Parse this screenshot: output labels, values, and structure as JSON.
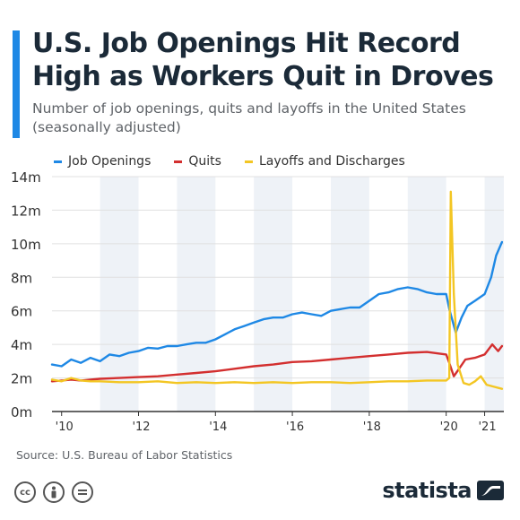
{
  "title": "U.S. Job Openings Hit Record High as Workers Quit in Droves",
  "subtitle": "Number of job openings, quits and layoffs in the United States (seasonally adjusted)",
  "source": "Source: U.S. Bureau of Labor Statistics",
  "brand": "statista",
  "license_icons": [
    "cc-icon",
    "attribution-icon",
    "no-derivatives-icon"
  ],
  "colors": {
    "accent": "#1e88e5",
    "band": "#eef2f7",
    "grid": "#e0e0e0",
    "axis": "#333333",
    "text": "#1b2a38"
  },
  "chart_data": {
    "type": "line",
    "ylim": [
      0,
      14
    ],
    "y_ticks": [
      0,
      2,
      4,
      6,
      8,
      10,
      12,
      14
    ],
    "y_tick_labels": [
      "0m",
      "2m",
      "4m",
      "6m",
      "8m",
      "10m",
      "12m",
      "14m"
    ],
    "x_ticks": [
      2010,
      2012,
      2014,
      2016,
      2018,
      2020,
      2021
    ],
    "x_tick_labels": [
      "'10",
      "'12",
      "'14",
      "'16",
      "'18",
      "'20",
      "'21"
    ],
    "xlim": [
      2009.75,
      2021.5
    ],
    "alternating_year_bands": true,
    "legend_position": "top",
    "series": [
      {
        "name": "Job Openings",
        "color": "#1e88e5",
        "points": [
          [
            2009.75,
            2.8
          ],
          [
            2010.0,
            2.7
          ],
          [
            2010.25,
            3.1
          ],
          [
            2010.5,
            2.9
          ],
          [
            2010.75,
            3.2
          ],
          [
            2011.0,
            3.0
          ],
          [
            2011.25,
            3.4
          ],
          [
            2011.5,
            3.3
          ],
          [
            2011.75,
            3.5
          ],
          [
            2012.0,
            3.6
          ],
          [
            2012.25,
            3.8
          ],
          [
            2012.5,
            3.75
          ],
          [
            2012.75,
            3.9
          ],
          [
            2013.0,
            3.9
          ],
          [
            2013.25,
            4.0
          ],
          [
            2013.5,
            4.1
          ],
          [
            2013.75,
            4.1
          ],
          [
            2014.0,
            4.3
          ],
          [
            2014.25,
            4.6
          ],
          [
            2014.5,
            4.9
          ],
          [
            2014.75,
            5.1
          ],
          [
            2015.0,
            5.3
          ],
          [
            2015.25,
            5.5
          ],
          [
            2015.5,
            5.6
          ],
          [
            2015.75,
            5.6
          ],
          [
            2016.0,
            5.8
          ],
          [
            2016.25,
            5.9
          ],
          [
            2016.5,
            5.8
          ],
          [
            2016.75,
            5.7
          ],
          [
            2017.0,
            6.0
          ],
          [
            2017.25,
            6.1
          ],
          [
            2017.5,
            6.2
          ],
          [
            2017.75,
            6.2
          ],
          [
            2018.0,
            6.6
          ],
          [
            2018.25,
            7.0
          ],
          [
            2018.5,
            7.1
          ],
          [
            2018.75,
            7.3
          ],
          [
            2019.0,
            7.4
          ],
          [
            2019.25,
            7.3
          ],
          [
            2019.5,
            7.1
          ],
          [
            2019.75,
            7.0
          ],
          [
            2020.0,
            7.0
          ],
          [
            2020.08,
            6.1
          ],
          [
            2020.25,
            4.7
          ],
          [
            2020.4,
            5.6
          ],
          [
            2020.55,
            6.3
          ],
          [
            2020.75,
            6.6
          ],
          [
            2021.0,
            7.0
          ],
          [
            2021.17,
            8.0
          ],
          [
            2021.3,
            9.3
          ],
          [
            2021.45,
            10.1
          ]
        ]
      },
      {
        "name": "Quits",
        "color": "#d32f2f",
        "points": [
          [
            2009.75,
            1.8
          ],
          [
            2010.0,
            1.85
          ],
          [
            2010.25,
            1.9
          ],
          [
            2010.5,
            1.85
          ],
          [
            2010.75,
            1.9
          ],
          [
            2011.0,
            1.95
          ],
          [
            2011.5,
            2.0
          ],
          [
            2012.0,
            2.05
          ],
          [
            2012.5,
            2.1
          ],
          [
            2013.0,
            2.2
          ],
          [
            2013.5,
            2.3
          ],
          [
            2014.0,
            2.4
          ],
          [
            2014.5,
            2.55
          ],
          [
            2015.0,
            2.7
          ],
          [
            2015.5,
            2.8
          ],
          [
            2016.0,
            2.95
          ],
          [
            2016.5,
            3.0
          ],
          [
            2017.0,
            3.1
          ],
          [
            2017.5,
            3.2
          ],
          [
            2018.0,
            3.3
          ],
          [
            2018.5,
            3.4
          ],
          [
            2019.0,
            3.5
          ],
          [
            2019.5,
            3.55
          ],
          [
            2020.0,
            3.4
          ],
          [
            2020.08,
            2.9
          ],
          [
            2020.2,
            2.1
          ],
          [
            2020.35,
            2.6
          ],
          [
            2020.5,
            3.1
          ],
          [
            2020.75,
            3.2
          ],
          [
            2021.0,
            3.4
          ],
          [
            2021.2,
            4.0
          ],
          [
            2021.35,
            3.6
          ],
          [
            2021.45,
            3.9
          ]
        ]
      },
      {
        "name": "Layoffs and Discharges",
        "color": "#f3c623",
        "points": [
          [
            2009.75,
            1.9
          ],
          [
            2010.0,
            1.8
          ],
          [
            2010.25,
            2.0
          ],
          [
            2010.5,
            1.85
          ],
          [
            2010.75,
            1.8
          ],
          [
            2011.0,
            1.8
          ],
          [
            2011.5,
            1.75
          ],
          [
            2012.0,
            1.75
          ],
          [
            2012.5,
            1.8
          ],
          [
            2013.0,
            1.7
          ],
          [
            2013.5,
            1.75
          ],
          [
            2014.0,
            1.7
          ],
          [
            2014.5,
            1.75
          ],
          [
            2015.0,
            1.7
          ],
          [
            2015.5,
            1.75
          ],
          [
            2016.0,
            1.7
          ],
          [
            2016.5,
            1.75
          ],
          [
            2017.0,
            1.75
          ],
          [
            2017.5,
            1.7
          ],
          [
            2018.0,
            1.75
          ],
          [
            2018.5,
            1.8
          ],
          [
            2019.0,
            1.8
          ],
          [
            2019.5,
            1.85
          ],
          [
            2020.0,
            1.85
          ],
          [
            2020.08,
            2.0
          ],
          [
            2020.12,
            13.1
          ],
          [
            2020.2,
            7.0
          ],
          [
            2020.3,
            2.8
          ],
          [
            2020.45,
            1.7
          ],
          [
            2020.6,
            1.6
          ],
          [
            2020.75,
            1.8
          ],
          [
            2020.9,
            2.1
          ],
          [
            2021.05,
            1.6
          ],
          [
            2021.2,
            1.5
          ],
          [
            2021.45,
            1.35
          ]
        ]
      }
    ]
  }
}
